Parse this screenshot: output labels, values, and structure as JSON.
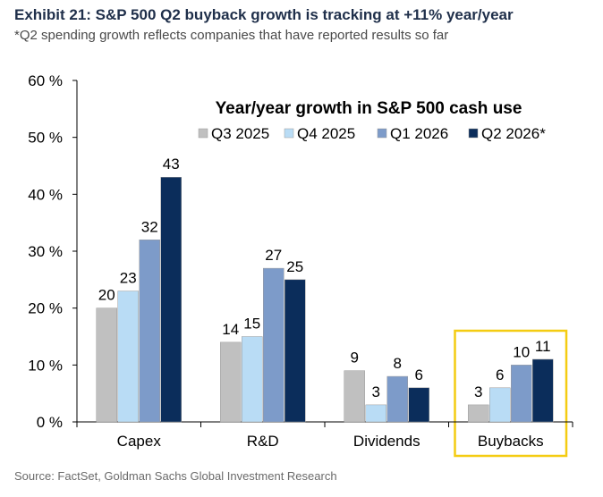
{
  "header": {
    "title": "Exhibit 21: S&P 500 Q2 buyback growth is tracking at +11% year/year",
    "subtitle": "*Q2 spending growth reflects companies that have reported results so far"
  },
  "source": "Source: FactSet, Goldman Sachs Global Investment Research",
  "colors": {
    "Q3 2025": "#c0c0c0",
    "Q4 2025": "#b9dcf5",
    "Q1 2026": "#7d9bc9",
    "Q2 2026*": "#0b2d5b",
    "highlight": "#f4cc12"
  },
  "chart_data": {
    "type": "bar",
    "title": "Year/year growth in S&P 500 cash use",
    "categories": [
      "Capex",
      "R&D",
      "Dividends",
      "Buybacks"
    ],
    "series": [
      {
        "name": "Q3 2025",
        "values": [
          20,
          14,
          9,
          3
        ]
      },
      {
        "name": "Q4 2025",
        "values": [
          23,
          15,
          3,
          6
        ]
      },
      {
        "name": "Q1 2026",
        "values": [
          32,
          27,
          8,
          10
        ]
      },
      {
        "name": "Q2 2026*",
        "values": [
          43,
          25,
          6,
          11
        ]
      }
    ],
    "ylim": [
      0,
      60
    ],
    "yticks": [
      0,
      10,
      20,
      30,
      40,
      50,
      60
    ],
    "ytick_labels": [
      "0 %",
      "10 %",
      "20 %",
      "30 %",
      "40 %",
      "50 %",
      "60 %"
    ],
    "xlabel": "",
    "ylabel": "",
    "grid": false,
    "legend_position": "top-right",
    "highlighted_category": "Buybacks"
  }
}
